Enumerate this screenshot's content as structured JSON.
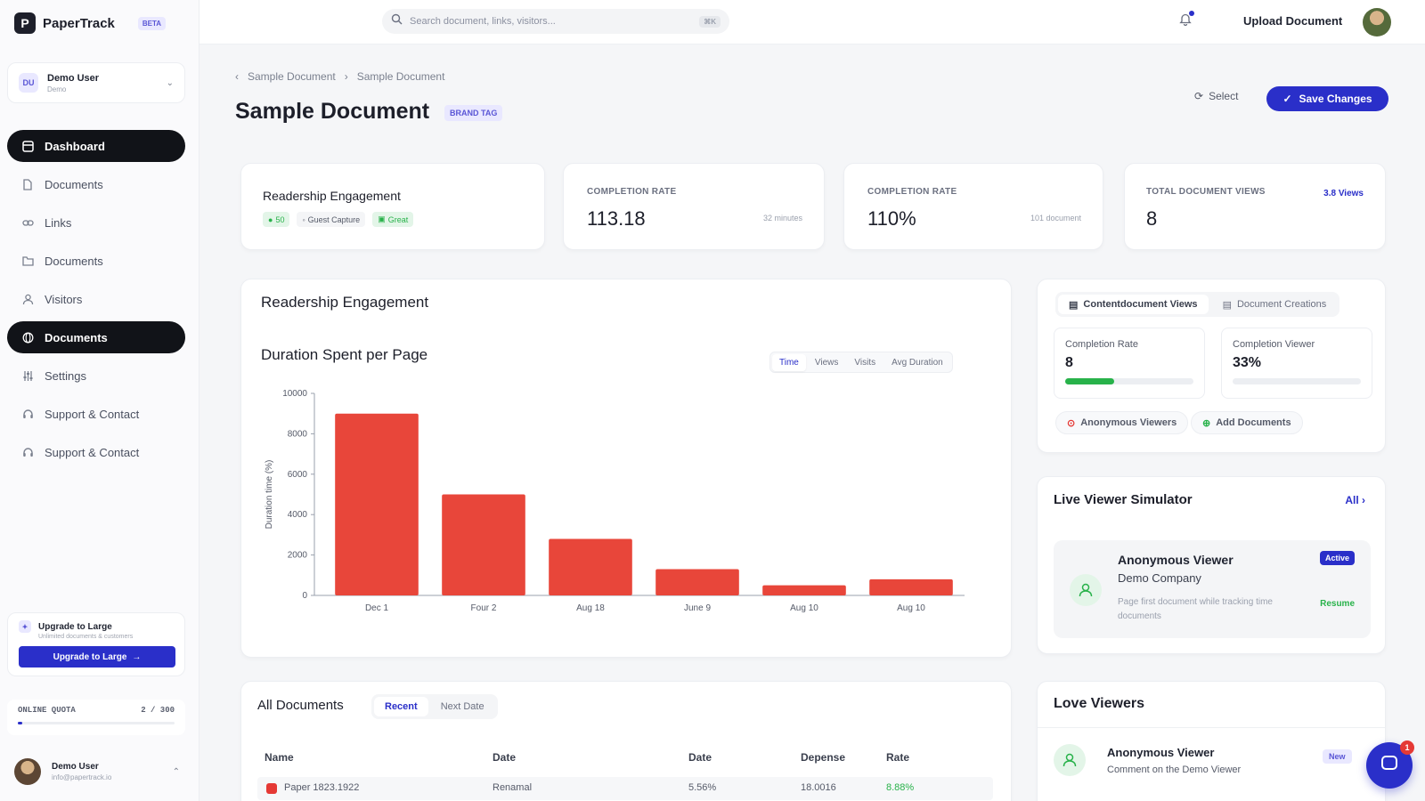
{
  "brand": {
    "name": "PaperTrack",
    "badge": "BETA",
    "logo_letter": "P"
  },
  "workspace": {
    "initials": "DU",
    "name": "Demo User",
    "sub": "Demo"
  },
  "topbar": {
    "search_placeholder": "Search document, links, visitors...",
    "search_kbd": "⌘K",
    "title": "Upload Document"
  },
  "sidebar": {
    "items": [
      {
        "label": "Dashboard",
        "icon": "dashboard-icon",
        "active": true
      },
      {
        "label": "Documents",
        "icon": "document-icon",
        "active": false
      },
      {
        "label": "Links",
        "icon": "link-icon",
        "active": false
      },
      {
        "label": "Documents",
        "icon": "folder-icon",
        "active": false
      },
      {
        "label": "Visitors",
        "icon": "user-icon",
        "active": false
      },
      {
        "label": "Documents",
        "icon": "globe-icon",
        "active": true
      },
      {
        "label": "Settings",
        "icon": "settings-icon",
        "active": false
      },
      {
        "label": "Support & Contact",
        "icon": "headset-icon",
        "active": false
      },
      {
        "label": "Support & Contact",
        "icon": "headset-icon",
        "active": false
      }
    ],
    "upgrade": {
      "title": "Upgrade to Large",
      "sub": "Unlimited documents & customers",
      "button": "Upgrade to Large"
    },
    "quota": {
      "label": "ONLINE QUOTA",
      "value": "2 / 300",
      "fraction": 0.03
    },
    "user": {
      "name": "Demo User",
      "email": "info@papertrack.io"
    }
  },
  "header": {
    "breadcrumb": [
      "Sample Document",
      "Sample Document"
    ],
    "title": "Sample Document",
    "tag": "BRAND TAG",
    "select_label": "Select",
    "save_label": "Save Changes"
  },
  "stats": [
    {
      "kind": "engagement",
      "title": "Readership Engagement",
      "pills": [
        "50",
        "Guest Capture",
        "Great"
      ]
    },
    {
      "label": "COMPLETION RATE",
      "value": "113.18",
      "sub": "32 minutes"
    },
    {
      "label": "COMPLETION RATE",
      "value": "110%",
      "sub": "101 document"
    },
    {
      "label": "TOTAL DOCUMENT VIEWS",
      "value": "8",
      "link": "3.8 Views"
    }
  ],
  "chart_panel": {
    "title": "Readership Engagement",
    "subtitle": "Duration Spent per Page",
    "tabs": [
      "Time",
      "Views",
      "Visits",
      "Avg Duration"
    ],
    "active_tab": 0
  },
  "chart_data": {
    "type": "bar",
    "title": "Duration Spent per Page",
    "xlabel": "",
    "ylabel": "Duration time (%)",
    "categories": [
      "Dec 1",
      "Four 2",
      "Aug 18",
      "June 9",
      "Aug 10",
      "Aug 10"
    ],
    "values": [
      9000,
      5000,
      2800,
      1300,
      500,
      800
    ],
    "ylim": [
      0,
      10000
    ],
    "yticks": [
      0,
      2000,
      4000,
      6000,
      8000,
      10000
    ],
    "color": "#e8463a"
  },
  "right_panel": {
    "tabs": [
      {
        "label": "Contentdocument Views",
        "active": true
      },
      {
        "label": "Document Creations",
        "active": false
      }
    ],
    "metrics": [
      {
        "label": "Completion Rate",
        "value": "8",
        "fraction": 0.38,
        "color": "#28b24a"
      },
      {
        "label": "Completion Viewer",
        "value": "33%",
        "fraction": 0,
        "color": "#28b24a"
      }
    ],
    "chips": [
      "Anonymous Viewers",
      "Add Documents"
    ]
  },
  "live_sim": {
    "title": "Live Viewer Simulator",
    "all_link": "All",
    "viewer": {
      "name": "Anonymous Viewer",
      "company": "Demo Company",
      "desc": "Page first document while tracking time documents",
      "badge": "Active",
      "link": "Resume"
    }
  },
  "live_viewers": {
    "title": "Love Viewers",
    "viewer": {
      "name": "Anonymous Viewer",
      "desc": "Comment on the Demo Viewer",
      "badge": "New"
    }
  },
  "table": {
    "title": "All Documents",
    "tabs": [
      "Recent",
      "Next Date"
    ],
    "columns": [
      "Name",
      "Date",
      "Date",
      "Depense",
      "Rate"
    ],
    "rows": [
      {
        "name": "Paper 1823.1922",
        "c1": "Renamal",
        "c2": "5.56%",
        "c3": "18.0016",
        "c4": "8.88%"
      }
    ]
  },
  "chat": {
    "badge": "1"
  }
}
